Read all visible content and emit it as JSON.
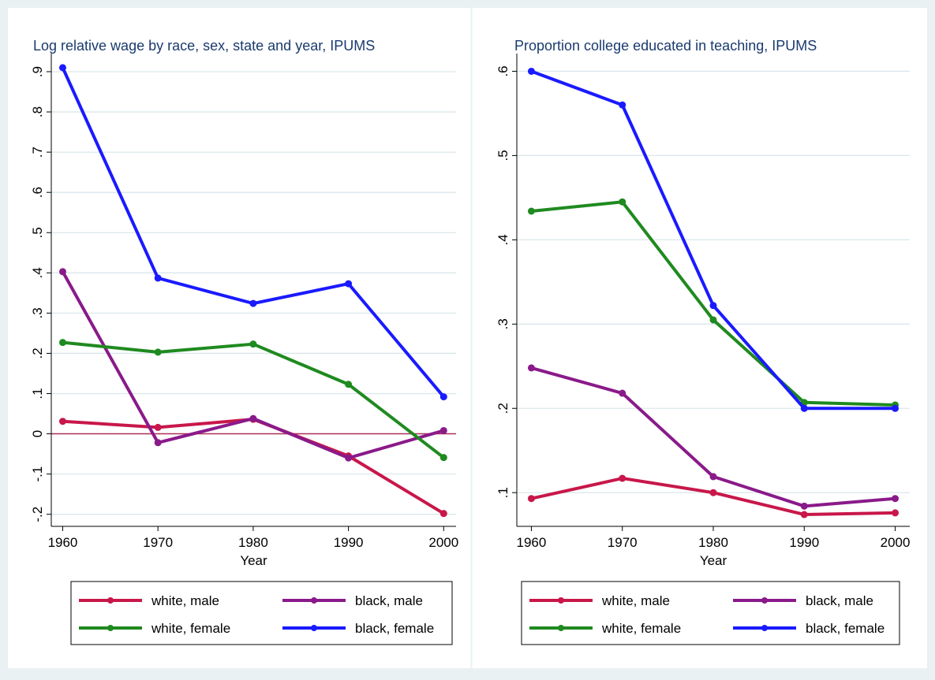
{
  "chart_data": [
    {
      "type": "line",
      "title": "Log relative wage by race, sex, state and year, IPUMS",
      "xlabel": "Year",
      "x": [
        1960,
        1970,
        1980,
        1990,
        2000
      ],
      "xlim": [
        1958.8,
        2001.3
      ],
      "xticks": [
        1960,
        1970,
        1980,
        1990,
        2000
      ],
      "ylim": [
        -0.23,
        0.945
      ],
      "yticks": [
        {
          "value": -0.2,
          "label": "-.2"
        },
        {
          "value": -0.1,
          "label": "-.1"
        },
        0,
        {
          "value": 0.1,
          "label": ".1"
        },
        {
          "value": 0.2,
          "label": ".2"
        },
        {
          "value": 0.3,
          "label": ".3"
        },
        {
          "value": 0.4,
          "label": ".4"
        },
        {
          "value": 0.5,
          "label": ".5"
        },
        {
          "value": 0.6,
          "label": ".6"
        },
        {
          "value": 0.7,
          "label": ".7"
        },
        {
          "value": 0.8,
          "label": ".8"
        },
        {
          "value": 0.9,
          "label": ".9"
        }
      ],
      "grid": true,
      "reference_line": 0,
      "reference_color": "#b0305a",
      "legend": "bottom",
      "series": [
        {
          "name": "white, male",
          "color": "#c8174a",
          "values": [
            0.031,
            0.016,
            0.036,
            -0.055,
            -0.198
          ]
        },
        {
          "name": "black, male",
          "color": "#8a1a8a",
          "values": [
            0.403,
            -0.022,
            0.038,
            -0.06,
            0.008
          ]
        },
        {
          "name": "white, female",
          "color": "#1f8a1f",
          "values": [
            0.227,
            0.203,
            0.223,
            0.123,
            -0.059
          ]
        },
        {
          "name": "black, female",
          "color": "#1a1aff",
          "values": [
            0.91,
            0.387,
            0.324,
            0.373,
            0.092
          ]
        }
      ]
    },
    {
      "type": "line",
      "title": "Proportion college educated in teaching, IPUMS",
      "xlabel": "Year",
      "x": [
        1960,
        1970,
        1980,
        1990,
        2000
      ],
      "xlim": [
        1958.4,
        2001.6
      ],
      "xticks": [
        1960,
        1970,
        1980,
        1990,
        2000
      ],
      "ylim": [
        0.06,
        0.621
      ],
      "yticks": [
        {
          "value": 0.1,
          "label": ".1"
        },
        {
          "value": 0.2,
          "label": ".2"
        },
        {
          "value": 0.3,
          "label": ".3"
        },
        {
          "value": 0.4,
          "label": ".4"
        },
        {
          "value": 0.5,
          "label": ".5"
        },
        {
          "value": 0.6,
          "label": ".6"
        }
      ],
      "grid": true,
      "legend": "bottom",
      "series": [
        {
          "name": "white, male",
          "color": "#c8174a",
          "values": [
            0.093,
            0.117,
            0.1,
            0.074,
            0.076
          ]
        },
        {
          "name": "black, male",
          "color": "#8a1a8a",
          "values": [
            0.248,
            0.218,
            0.119,
            0.084,
            0.093
          ]
        },
        {
          "name": "white, female",
          "color": "#1f8a1f",
          "values": [
            0.434,
            0.445,
            0.305,
            0.207,
            0.204
          ]
        },
        {
          "name": "black, female",
          "color": "#1a1aff",
          "values": [
            0.6,
            0.56,
            0.322,
            0.2,
            0.2
          ]
        }
      ]
    }
  ]
}
